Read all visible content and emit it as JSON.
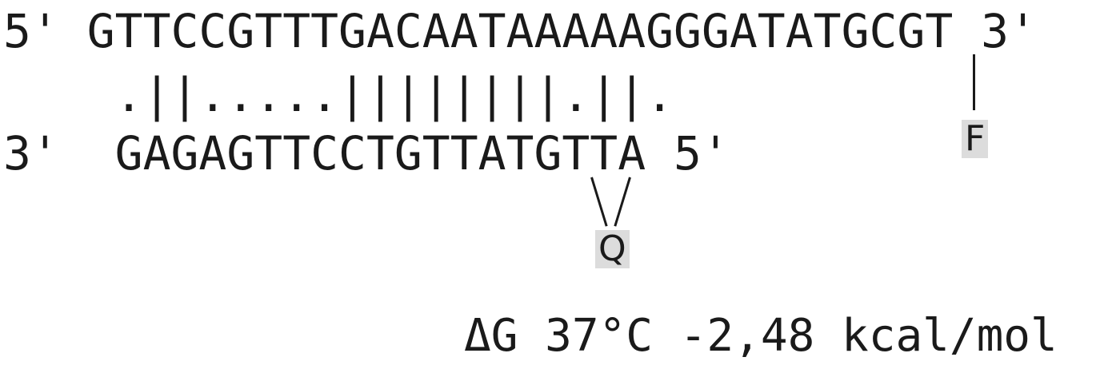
{
  "top_strand": "5' GTTCCGTTTGACAATAAAAAGGGATATGCGT 3'",
  "pairing": "    .||.....||||||||.||.",
  "bottom_strand": "3'  GAGAGTTCCTGTTATGTTA 5'",
  "fluorophore_label": "F",
  "quencher_label": "Q",
  "delta_g": "ΔG 37°C -2,48 kcal/mol"
}
